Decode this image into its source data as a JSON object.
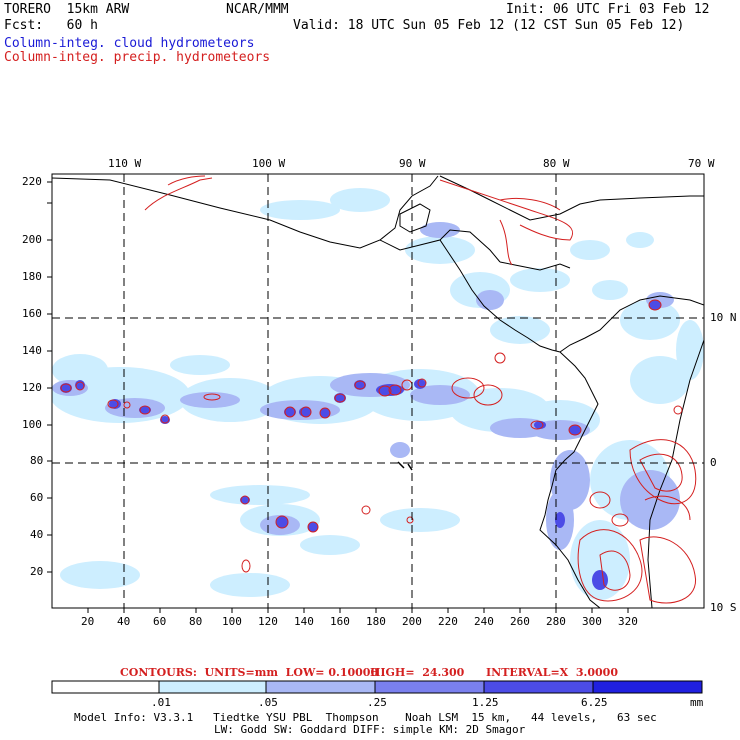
{
  "header": {
    "model": "TORERO  15km ARW",
    "org": "NCAR/MMM",
    "init": "Init: 06 UTC Fri 03 Feb 12",
    "fcst": "Fcst:   60 h",
    "valid": "Valid: 18 UTC Sun 05 Feb 12 (12 CST Sun 05 Feb 12)",
    "field1": "Column-integ. cloud hydrometeors",
    "field2": "Column-integ. precip. hydrometeors"
  },
  "colors": {
    "field1": "#1a1ad6",
    "field2": "#d42020",
    "cloud_levels": [
      "#ffffff",
      "#cdeeff",
      "#a9b8f5",
      "#7a80ee",
      "#4c4ce6",
      "#2020e0"
    ]
  },
  "axes": {
    "top_lon": [
      "110 W",
      "100 W",
      "90 W",
      "80 W",
      "70 W"
    ],
    "right_lat": [
      "10 N",
      "0",
      "10 S"
    ],
    "x_ticks": [
      "20",
      "40",
      "60",
      "80",
      "100",
      "120",
      "140",
      "160",
      "180",
      "200",
      "220",
      "240",
      "260",
      "280",
      "300",
      "320"
    ],
    "y_ticks": [
      "20",
      "40",
      "60",
      "80",
      "100",
      "120",
      "140",
      "160",
      "180",
      "200",
      "220"
    ]
  },
  "contours_info": {
    "label": "CONTOURS:  UNITS=mm  LOW= 0.10000",
    "high": "HIGH=  24.300",
    "interval": "INTERVAL=X  3.0000"
  },
  "colorbar": {
    "labels": [
      ".01",
      ".05",
      ".25",
      "1.25",
      "6.25"
    ],
    "unit": "mm"
  },
  "footer": {
    "line1": "Model Info: V3.3.1   Tiedtke YSU PBL  Thompson    Noah LSM  15 km,   44 levels,   63 sec",
    "line2": "LW: Godd SW: Goddard DIFF: simple KM: 2D Smagor"
  }
}
